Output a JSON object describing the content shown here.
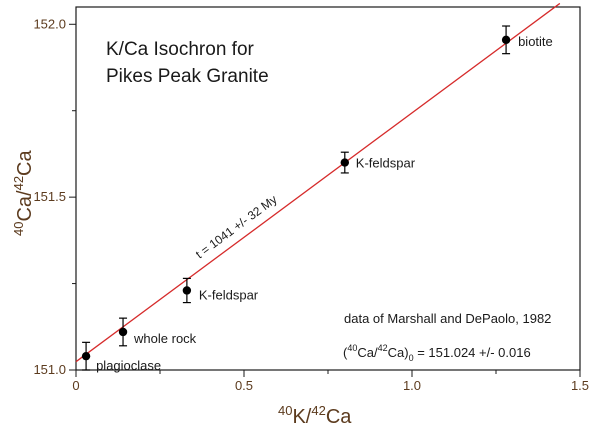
{
  "chart_data": {
    "type": "scatter",
    "title_lines": [
      "K/Ca Isochron for",
      "Pikes Peak Granite"
    ],
    "xlabel": {
      "iso1": "40",
      "base1": "K/",
      "iso2": "42",
      "base2": "Ca"
    },
    "ylabel": {
      "iso1": "40",
      "base1": "Ca/",
      "iso2": "42",
      "base2": "Ca"
    },
    "xlim": [
      0,
      1.5
    ],
    "ylim": [
      151.0,
      152.05
    ],
    "xticks": [
      "0",
      "0.5",
      "1.0",
      "1.5"
    ],
    "xtick_values": [
      0,
      0.5,
      1.0,
      1.5
    ],
    "xminor_values": [
      0.25,
      0.75,
      1.25
    ],
    "yticks": [
      "151.0",
      "151.5",
      "152.0"
    ],
    "ytick_values": [
      151.0,
      151.5,
      152.0
    ],
    "yminor_values": [
      151.25,
      151.75
    ],
    "grid": false,
    "points": [
      {
        "x": 0.03,
        "y": 151.04,
        "err": 0.04,
        "label": "plagioclase"
      },
      {
        "x": 0.14,
        "y": 151.11,
        "err": 0.04,
        "label": "whole rock"
      },
      {
        "x": 0.33,
        "y": 151.23,
        "err": 0.035,
        "label": "K-feldspar"
      },
      {
        "x": 0.8,
        "y": 151.6,
        "err": 0.03,
        "label": "K-feldspar"
      },
      {
        "x": 1.28,
        "y": 151.955,
        "err": 0.04,
        "label": "biotite"
      }
    ],
    "fit_line": {
      "intercept": 151.024,
      "slope": 0.7197,
      "x_range": [
        0,
        1.44
      ],
      "label": "t = 1041 +/- 32 My",
      "color": "#d62b2b"
    },
    "annotations": {
      "source": "data of Marshall and DePaolo, 1982",
      "intercept_label": {
        "open": "(",
        "iso1": "40",
        "base1": "Ca/",
        "iso2": "42",
        "base2": "Ca",
        "close": ")",
        "subscript": "0",
        "value": " =  151.024 +/- 0.016"
      }
    },
    "colors": {
      "axis": "#1a1a1a",
      "tick_labels": "#5c3b1e",
      "fit_line": "#d62b2b",
      "points": "#000000"
    }
  }
}
